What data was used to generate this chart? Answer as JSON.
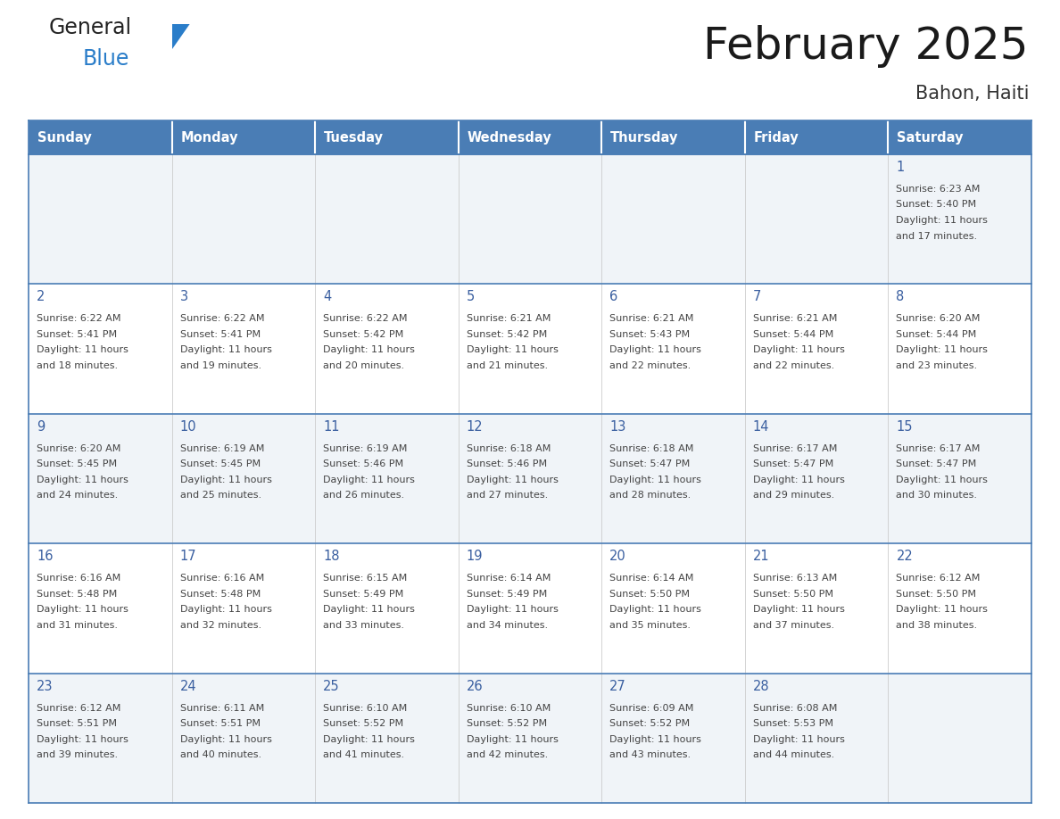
{
  "title": "February 2025",
  "subtitle": "Bahon, Haiti",
  "days_of_week": [
    "Sunday",
    "Monday",
    "Tuesday",
    "Wednesday",
    "Thursday",
    "Friday",
    "Saturday"
  ],
  "header_bg": "#4a7db5",
  "header_text": "#ffffff",
  "row_bg_light": "#f0f4f8",
  "row_bg_white": "#ffffff",
  "day_num_color": "#3a5fa0",
  "info_text_color": "#444444",
  "border_color": "#4a7db5",
  "logo_general_color": "#222222",
  "logo_blue_color": "#2a7dc9",
  "logo_triangle_color": "#2a7dc9",
  "title_color": "#1a1a1a",
  "subtitle_color": "#333333",
  "cal_data": [
    {
      "day": 1,
      "col": 6,
      "row": 0,
      "sunrise": "6:23 AM",
      "sunset": "5:40 PM",
      "daylight": "11 hours and 17 minutes."
    },
    {
      "day": 2,
      "col": 0,
      "row": 1,
      "sunrise": "6:22 AM",
      "sunset": "5:41 PM",
      "daylight": "11 hours and 18 minutes."
    },
    {
      "day": 3,
      "col": 1,
      "row": 1,
      "sunrise": "6:22 AM",
      "sunset": "5:41 PM",
      "daylight": "11 hours and 19 minutes."
    },
    {
      "day": 4,
      "col": 2,
      "row": 1,
      "sunrise": "6:22 AM",
      "sunset": "5:42 PM",
      "daylight": "11 hours and 20 minutes."
    },
    {
      "day": 5,
      "col": 3,
      "row": 1,
      "sunrise": "6:21 AM",
      "sunset": "5:42 PM",
      "daylight": "11 hours and 21 minutes."
    },
    {
      "day": 6,
      "col": 4,
      "row": 1,
      "sunrise": "6:21 AM",
      "sunset": "5:43 PM",
      "daylight": "11 hours and 22 minutes."
    },
    {
      "day": 7,
      "col": 5,
      "row": 1,
      "sunrise": "6:21 AM",
      "sunset": "5:44 PM",
      "daylight": "11 hours and 22 minutes."
    },
    {
      "day": 8,
      "col": 6,
      "row": 1,
      "sunrise": "6:20 AM",
      "sunset": "5:44 PM",
      "daylight": "11 hours and 23 minutes."
    },
    {
      "day": 9,
      "col": 0,
      "row": 2,
      "sunrise": "6:20 AM",
      "sunset": "5:45 PM",
      "daylight": "11 hours and 24 minutes."
    },
    {
      "day": 10,
      "col": 1,
      "row": 2,
      "sunrise": "6:19 AM",
      "sunset": "5:45 PM",
      "daylight": "11 hours and 25 minutes."
    },
    {
      "day": 11,
      "col": 2,
      "row": 2,
      "sunrise": "6:19 AM",
      "sunset": "5:46 PM",
      "daylight": "11 hours and 26 minutes."
    },
    {
      "day": 12,
      "col": 3,
      "row": 2,
      "sunrise": "6:18 AM",
      "sunset": "5:46 PM",
      "daylight": "11 hours and 27 minutes."
    },
    {
      "day": 13,
      "col": 4,
      "row": 2,
      "sunrise": "6:18 AM",
      "sunset": "5:47 PM",
      "daylight": "11 hours and 28 minutes."
    },
    {
      "day": 14,
      "col": 5,
      "row": 2,
      "sunrise": "6:17 AM",
      "sunset": "5:47 PM",
      "daylight": "11 hours and 29 minutes."
    },
    {
      "day": 15,
      "col": 6,
      "row": 2,
      "sunrise": "6:17 AM",
      "sunset": "5:47 PM",
      "daylight": "11 hours and 30 minutes."
    },
    {
      "day": 16,
      "col": 0,
      "row": 3,
      "sunrise": "6:16 AM",
      "sunset": "5:48 PM",
      "daylight": "11 hours and 31 minutes."
    },
    {
      "day": 17,
      "col": 1,
      "row": 3,
      "sunrise": "6:16 AM",
      "sunset": "5:48 PM",
      "daylight": "11 hours and 32 minutes."
    },
    {
      "day": 18,
      "col": 2,
      "row": 3,
      "sunrise": "6:15 AM",
      "sunset": "5:49 PM",
      "daylight": "11 hours and 33 minutes."
    },
    {
      "day": 19,
      "col": 3,
      "row": 3,
      "sunrise": "6:14 AM",
      "sunset": "5:49 PM",
      "daylight": "11 hours and 34 minutes."
    },
    {
      "day": 20,
      "col": 4,
      "row": 3,
      "sunrise": "6:14 AM",
      "sunset": "5:50 PM",
      "daylight": "11 hours and 35 minutes."
    },
    {
      "day": 21,
      "col": 5,
      "row": 3,
      "sunrise": "6:13 AM",
      "sunset": "5:50 PM",
      "daylight": "11 hours and 37 minutes."
    },
    {
      "day": 22,
      "col": 6,
      "row": 3,
      "sunrise": "6:12 AM",
      "sunset": "5:50 PM",
      "daylight": "11 hours and 38 minutes."
    },
    {
      "day": 23,
      "col": 0,
      "row": 4,
      "sunrise": "6:12 AM",
      "sunset": "5:51 PM",
      "daylight": "11 hours and 39 minutes."
    },
    {
      "day": 24,
      "col": 1,
      "row": 4,
      "sunrise": "6:11 AM",
      "sunset": "5:51 PM",
      "daylight": "11 hours and 40 minutes."
    },
    {
      "day": 25,
      "col": 2,
      "row": 4,
      "sunrise": "6:10 AM",
      "sunset": "5:52 PM",
      "daylight": "11 hours and 41 minutes."
    },
    {
      "day": 26,
      "col": 3,
      "row": 4,
      "sunrise": "6:10 AM",
      "sunset": "5:52 PM",
      "daylight": "11 hours and 42 minutes."
    },
    {
      "day": 27,
      "col": 4,
      "row": 4,
      "sunrise": "6:09 AM",
      "sunset": "5:52 PM",
      "daylight": "11 hours and 43 minutes."
    },
    {
      "day": 28,
      "col": 5,
      "row": 4,
      "sunrise": "6:08 AM",
      "sunset": "5:53 PM",
      "daylight": "11 hours and 44 minutes."
    }
  ]
}
